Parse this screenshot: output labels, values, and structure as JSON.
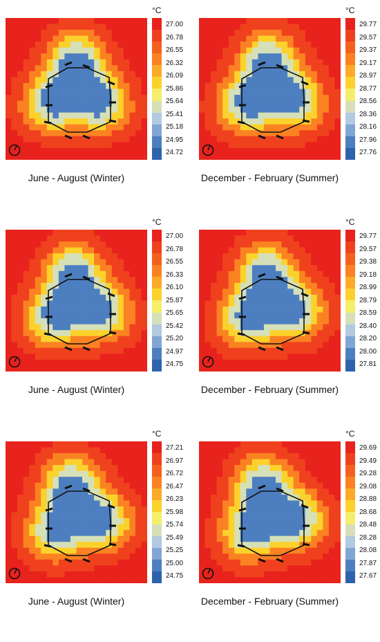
{
  "chart_data": [
    {
      "type": "heatmap",
      "caption": "June - August (Winter)",
      "unit": "°C",
      "colorbar_ticks": [
        "27.00",
        "26.78",
        "26.55",
        "26.32",
        "26.09",
        "25.86",
        "25.64",
        "25.41",
        "25.18",
        "24.95",
        "24.72"
      ],
      "range": [
        24.72,
        27.0
      ]
    },
    {
      "type": "heatmap",
      "caption": "December - February (Summer)",
      "unit": "°C",
      "colorbar_ticks": [
        "29.77",
        "29.57",
        "29.37",
        "29.17",
        "28.97",
        "28.77",
        "28.56",
        "28.36",
        "28.16",
        "27.96",
        "27.76"
      ],
      "range": [
        27.76,
        29.77
      ]
    },
    {
      "type": "heatmap",
      "caption": "June - August (Winter)",
      "unit": "°C",
      "colorbar_ticks": [
        "27.00",
        "26.78",
        "26.55",
        "26.33",
        "26.10",
        "25.87",
        "25.65",
        "25.42",
        "25.20",
        "24.97",
        "24.75"
      ],
      "range": [
        24.75,
        27.0
      ]
    },
    {
      "type": "heatmap",
      "caption": "December - February (Summer)",
      "unit": "°C",
      "colorbar_ticks": [
        "29.77",
        "29.57",
        "29.38",
        "29.18",
        "28.99",
        "28.79",
        "28.59",
        "28.40",
        "28.20",
        "28.00",
        "27.81"
      ],
      "range": [
        27.81,
        29.77
      ]
    },
    {
      "type": "heatmap",
      "caption": "June - August (Winter)",
      "unit": "°C",
      "colorbar_ticks": [
        "27.21",
        "26.97",
        "26.72",
        "26.47",
        "26.23",
        "25.98",
        "25.74",
        "25.49",
        "25.25",
        "25.00",
        "24.75"
      ],
      "range": [
        24.75,
        27.21
      ]
    },
    {
      "type": "heatmap",
      "caption": "December - February (Summer)",
      "unit": "°C",
      "colorbar_ticks": [
        "29.69",
        "29.49",
        "29.28",
        "29.08",
        "28.88",
        "28.68",
        "28.48",
        "28.28",
        "28.08",
        "27.87",
        "27.67"
      ],
      "range": [
        27.67,
        29.69
      ]
    }
  ],
  "colors": {
    "scale": [
      "#e8221c",
      "#f0411e",
      "#f5601f",
      "#fa8222",
      "#fdaa28",
      "#fbd22c",
      "#f5ee6a",
      "#d6e0b8",
      "#b2c9e2",
      "#7fa6d5",
      "#4d7fc0",
      "#2d62ad"
    ]
  }
}
